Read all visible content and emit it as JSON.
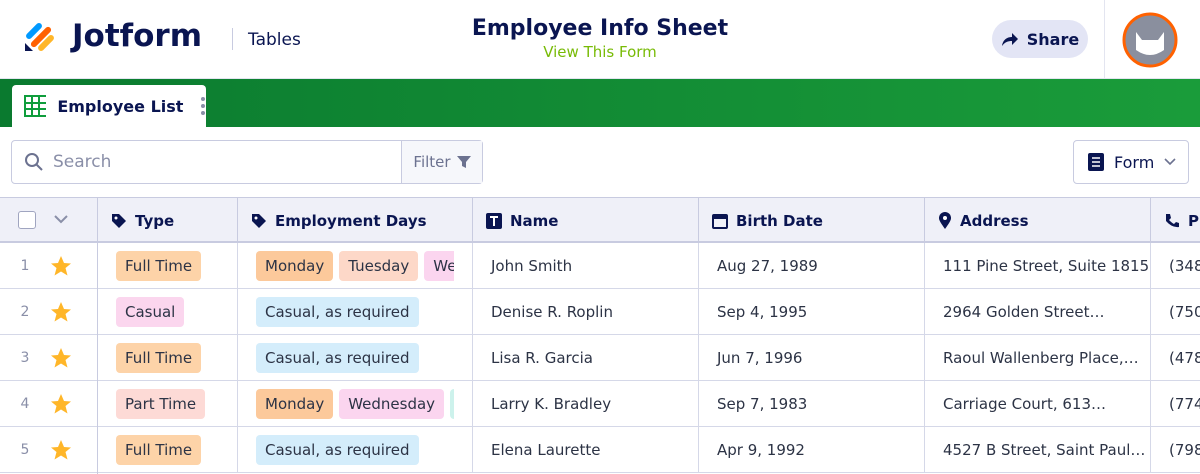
{
  "header": {
    "brand": "Jotform",
    "section": "Tables",
    "title": "Employee Info Sheet",
    "link": "View This Form",
    "share": "Share"
  },
  "tab": {
    "label": "Employee List"
  },
  "toolbar": {
    "search_placeholder": "Search",
    "filter": "Filter",
    "view": "Form"
  },
  "table": {
    "columns": [
      "Type",
      "Employment Days",
      "Name",
      "Birth Date",
      "Address",
      "P"
    ],
    "rows": [
      {
        "num": 1,
        "type": {
          "label": "Full Time",
          "color": "#fdd3a8"
        },
        "days": [
          {
            "label": "Monday",
            "color": "#fcc99b"
          },
          {
            "label": "Tuesday",
            "color": "#fdd8c8"
          },
          {
            "label": "Wed",
            "color": "#fbd5ef"
          }
        ],
        "name": "John Smith",
        "birth": "Aug 27, 1989",
        "address": "111 Pine Street, Suite 1815…",
        "phone": "(348"
      },
      {
        "num": 2,
        "type": {
          "label": "Casual",
          "color": "#fbd6ee"
        },
        "days": [
          {
            "label": "Casual, as required",
            "color": "#d4edfb"
          }
        ],
        "name": "Denise R. Roplin",
        "birth": "Sep 4, 1995",
        "address": "2964 Golden Street…",
        "phone": "(750"
      },
      {
        "num": 3,
        "type": {
          "label": "Full Time",
          "color": "#fdd3a8"
        },
        "days": [
          {
            "label": "Casual, as required",
            "color": "#d4edfb"
          }
        ],
        "name": "Lisa R. Garcia",
        "birth": "Jun 7, 1996",
        "address": "Raoul Wallenberg Place,…",
        "phone": "(478"
      },
      {
        "num": 4,
        "type": {
          "label": "Part Time",
          "color": "#fddad6"
        },
        "days": [
          {
            "label": "Monday",
            "color": "#fcc99b"
          },
          {
            "label": "Wednesday",
            "color": "#fbd5ef"
          }
        ],
        "name": "Larry K. Bradley",
        "birth": "Sep 7, 1983",
        "address": "Carriage Court, 613…",
        "phone": "(774"
      },
      {
        "num": 5,
        "type": {
          "label": "Full Time",
          "color": "#fdd3a8"
        },
        "days": [
          {
            "label": "Casual, as required",
            "color": "#d4edfb"
          }
        ],
        "name": "Elena Laurette",
        "birth": "Apr 9, 1992",
        "address": "4527 B Street, Saint Paul…",
        "phone": "(798"
      }
    ]
  }
}
